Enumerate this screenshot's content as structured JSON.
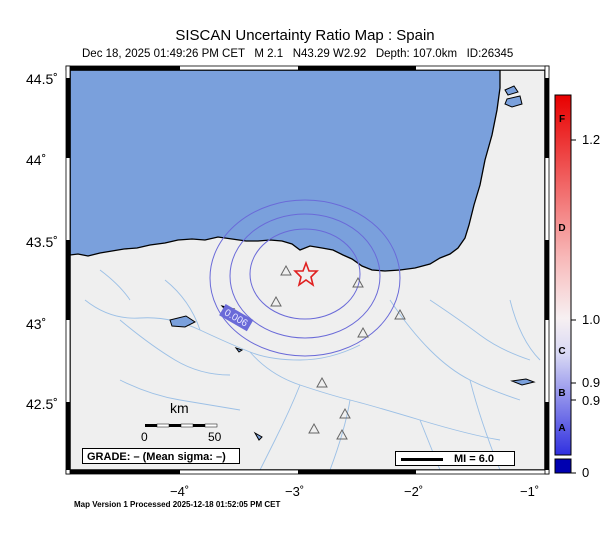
{
  "header": {
    "title": "SISCAN Uncertainty Ratio Map : Spain",
    "subtitle": "Dec 18, 2025 01:49:26 PM CET   M 2.1   N43.29 W2.92   Depth: 107.0km   ID:26345"
  },
  "axes": {
    "y_ticks": [
      "44.5˚",
      "44˚",
      "43.5˚",
      "43˚",
      "42.5˚"
    ],
    "x_ticks": [
      "−4˚",
      "−3˚",
      "−2˚",
      "−1˚"
    ]
  },
  "colorbar": {
    "grades": [
      "F",
      "D",
      "C",
      "B",
      "A"
    ],
    "values": [
      "1.2",
      "1.0",
      "0.9",
      "0.9",
      "0"
    ],
    "colors": {
      "top": "#e80000",
      "mid": "#f7f0f2",
      "bottom": "#3030e0",
      "cap": "#0000b0"
    }
  },
  "map": {
    "contour_label": "0.006",
    "epicenter": {
      "symbol": "star-icon",
      "color": "#e02020"
    },
    "water_color": "#7aa0dc",
    "land_color": "#efefef",
    "station_symbol": "triangle-icon"
  },
  "scale_bar": {
    "unit": "km",
    "start": "0",
    "end": "50"
  },
  "grade_box": "GRADE: – (Mean sigma: –)",
  "mi_legend": "MI = 6.0",
  "footer": "Map Version 1 Processed 2025-12-18 01:52:05 PM CET"
}
